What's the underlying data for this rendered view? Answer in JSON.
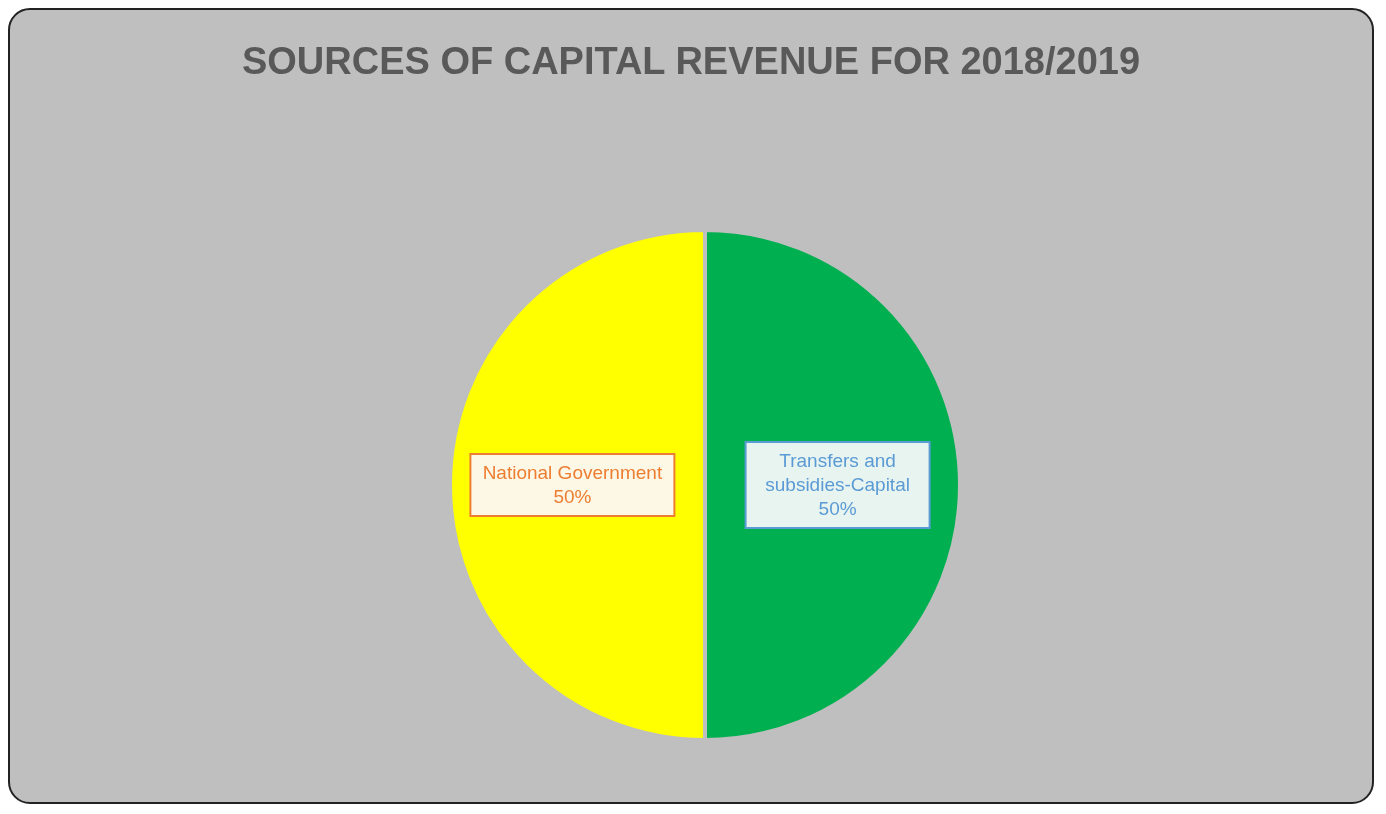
{
  "chart_data": {
    "type": "pie",
    "title": "SOURCES OF CAPITAL REVENUE FOR 2018/2019",
    "categories": [
      "National Government",
      "Transfers and subsidies-Capital"
    ],
    "values": [
      50,
      50
    ],
    "colors": [
      "#ffff00",
      "#00b050"
    ],
    "value_labels": [
      "50%",
      "50%"
    ]
  }
}
